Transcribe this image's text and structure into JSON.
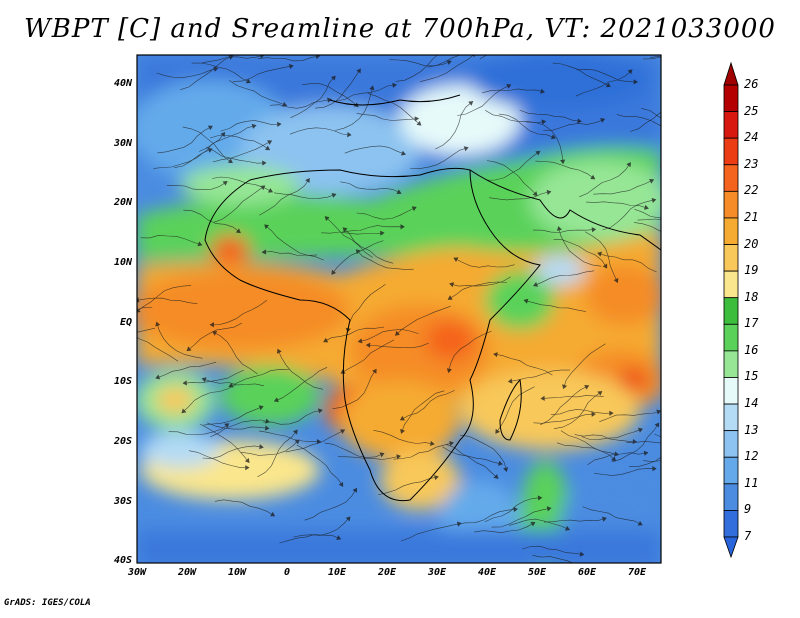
{
  "title": "WBPT [C] and Sreamline at 700hPa, VT: 2021033000",
  "lat_labels": [
    "40N",
    "30N",
    "20N",
    "10N",
    "EQ",
    "10S",
    "20S",
    "30S",
    "40S"
  ],
  "lon_labels": [
    "30W",
    "20W",
    "10W",
    "0",
    "10E",
    "20E",
    "30E",
    "40E",
    "50E",
    "60E",
    "70E"
  ],
  "colorbar": {
    "labels": [
      "26",
      "25",
      "24",
      "23",
      "22",
      "21",
      "20",
      "19",
      "18",
      "17",
      "16",
      "15",
      "14",
      "13",
      "12",
      "11",
      "9",
      "7"
    ],
    "colors": [
      "#b50000",
      "#d7190f",
      "#eb3c14",
      "#f5641e",
      "#f58c28",
      "#f5aa32",
      "#f8c85a",
      "#fae68c",
      "#3cbe3c",
      "#5ad25a",
      "#96e696",
      "#e6fafa",
      "#b4dcf5",
      "#8cc3f0",
      "#64aaeb",
      "#4b8ce1",
      "#326edc"
    ],
    "arrow_colors": {
      "top": "#a00000",
      "bottom": "#2864dc"
    }
  },
  "credit": "GrADS: IGES/COLA"
}
